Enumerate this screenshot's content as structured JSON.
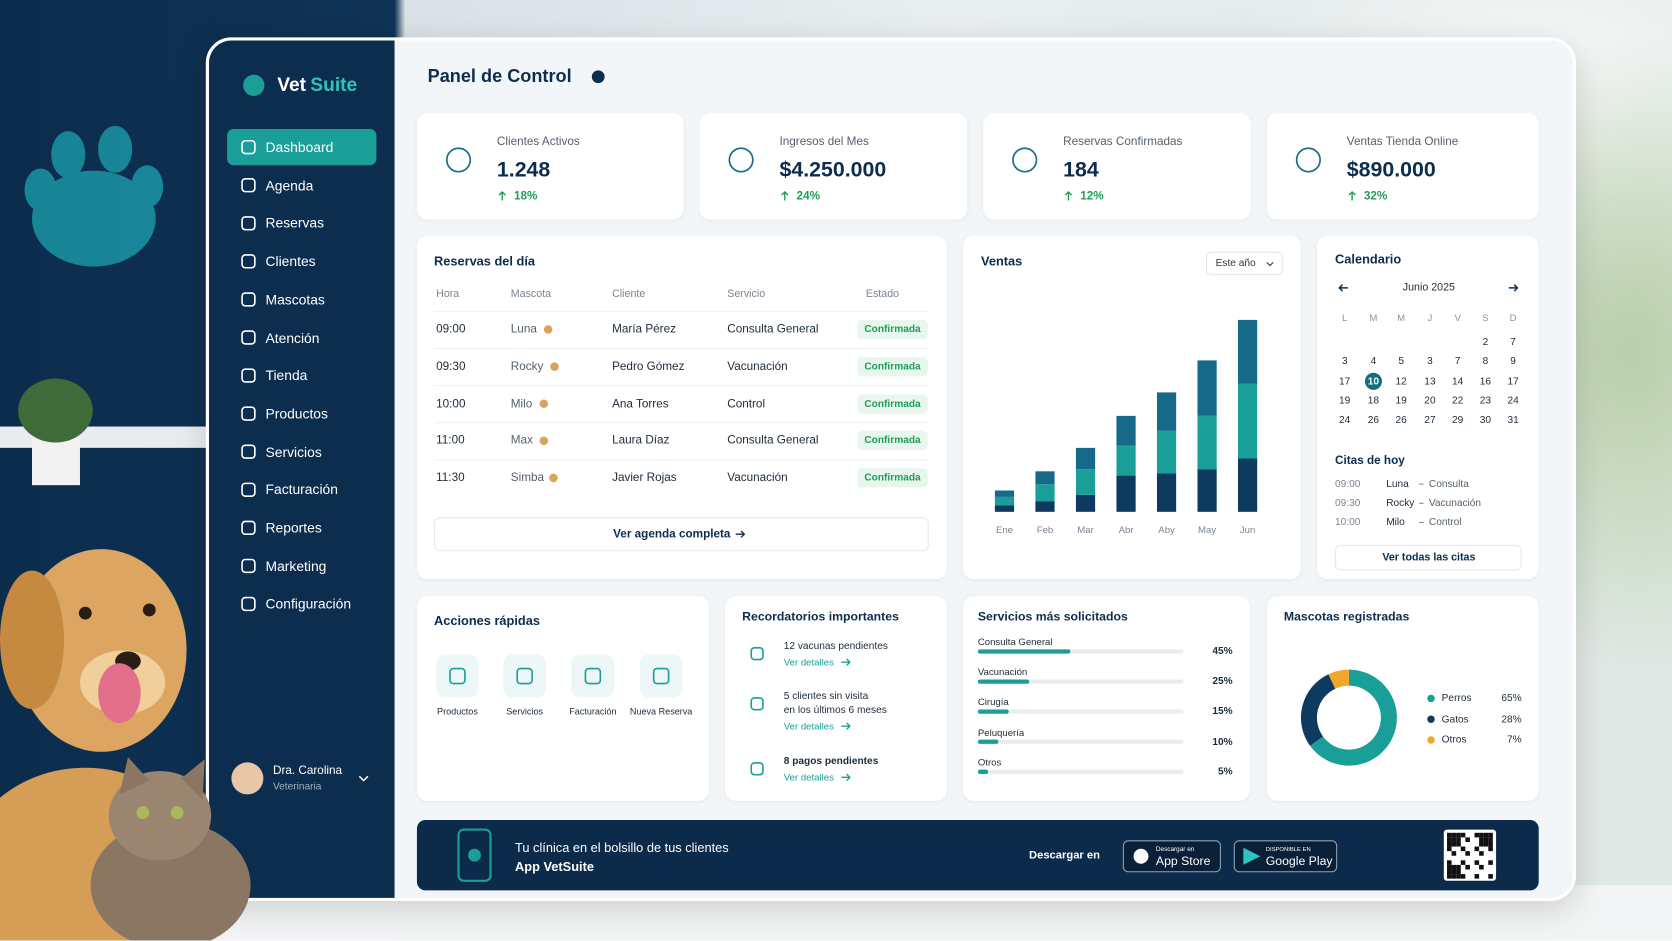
{
  "brand": {
    "part1": "Vet",
    "part2": "Suite"
  },
  "menu": {
    "items": [
      "Dashboard",
      "Agenda",
      "Reservas",
      "Clientes",
      "Mascotas",
      "Atención",
      "Tienda",
      "Productos",
      "Servicios",
      "Facturación",
      "Reportes",
      "Marketing",
      "Configuración"
    ],
    "active": 0
  },
  "user": {
    "name": "Dra. Carolina",
    "role": "Veterinaria"
  },
  "header": {
    "title": "Panel de Control"
  },
  "kpis": [
    {
      "label": "Clientes Activos",
      "value": "1.248",
      "change": "18%"
    },
    {
      "label": "Ingresos del Mes",
      "value": "$4.250.000",
      "change": "24%"
    },
    {
      "label": "Reservas Confirmadas",
      "value": "184",
      "change": "12%"
    },
    {
      "label": "Ventas Tienda Online",
      "value": "$890.000",
      "change": "32%"
    }
  ],
  "reservas": {
    "title": "Reservas del día",
    "columns": [
      "Hora",
      "Mascota",
      "Cliente",
      "Servicio",
      "Estado"
    ],
    "rows": [
      [
        "09:00",
        "Luna",
        "María Pérez",
        "Consulta General",
        "Confirmada"
      ],
      [
        "09:30",
        "Rocky",
        "Pedro Gómez",
        "Vacunación",
        "Confirmada"
      ],
      [
        "10:00",
        "Milo",
        "Ana Torres",
        "Control",
        "Confirmada"
      ],
      [
        "11:00",
        "Max",
        "Laura Díaz",
        "Consulta General",
        "Confirmada"
      ],
      [
        "11:30",
        "Simba",
        "Javier Rojas",
        "Vacunación",
        "Confirmada"
      ]
    ],
    "link": "Ver agenda completa"
  },
  "ventas": {
    "type": "bar",
    "stacked": true,
    "title": "Ventas",
    "filter": "Este año",
    "categories": [
      "Ene",
      "Feb",
      "Mar",
      "Abr",
      "Aby",
      "May",
      "Jun"
    ],
    "series": [
      {
        "color": "#0e3a5f",
        "values": [
          3,
          5,
          8,
          17,
          18,
          20,
          25
        ]
      },
      {
        "color": "#1a9e98",
        "values": [
          4,
          8,
          12,
          14,
          20,
          25,
          35
        ]
      },
      {
        "color": "#17698a",
        "values": [
          3,
          6,
          10,
          14,
          18,
          26,
          30
        ]
      }
    ],
    "ylim": [
      0,
      100
    ]
  },
  "calendario": {
    "title": "Calendario",
    "month": "Junio 2025",
    "weekdays": [
      "L",
      "M",
      "M",
      "J",
      "V",
      "S",
      "D"
    ],
    "weeks": [
      [
        null,
        null,
        null,
        null,
        null,
        "2",
        "7"
      ],
      [
        "3",
        "4",
        "5",
        "3",
        "7",
        "8",
        "9"
      ],
      [
        "17",
        "10",
        "12",
        "13",
        "14",
        "16",
        "17"
      ],
      [
        "19",
        "18",
        "19",
        "20",
        "22",
        "23",
        "24"
      ],
      [
        "24",
        "26",
        "26",
        "27",
        "29",
        "30",
        "31"
      ]
    ],
    "highlight": [
      2,
      1
    ],
    "today_title": "Citas de hoy",
    "citas": [
      [
        "09:00",
        "Luna",
        "Consulta"
      ],
      [
        "09:30",
        "Rocky",
        "Vacunación"
      ],
      [
        "10:00",
        "Milo",
        "Control"
      ]
    ],
    "link": "Ver todas las citas"
  },
  "acciones": {
    "title": "Acciones rápidas",
    "items": [
      "Productos",
      "Servicios",
      "Facturación",
      "Nueva Reserva"
    ]
  },
  "recordatorios": {
    "title": "Recordatorios importantes",
    "items": [
      {
        "lines": [
          "12 vacunas pendientes"
        ],
        "link": "Ver detalles"
      },
      {
        "lines": [
          "5 clientes sin visita",
          "en los últimos 6 meses"
        ],
        "link": "Ver detalles"
      },
      {
        "lines": [
          "8 pagos pendientes"
        ],
        "link": "Ver detalles"
      }
    ]
  },
  "servicios": {
    "title": "Servicios más solicitados",
    "categories": [
      "Consulta General",
      "Vacunación",
      "Cirugía",
      "Peluquería",
      "Otros"
    ],
    "values": [
      45,
      25,
      15,
      10,
      5
    ],
    "value_labels": [
      "45%",
      "25%",
      "15%",
      "10%",
      "5%"
    ],
    "color": "#1a9e98",
    "xlim": [
      0,
      100
    ]
  },
  "mascotas": {
    "type": "pie",
    "title": "Mascotas registradas",
    "categories": [
      "Perros",
      "Gatos",
      "Otros"
    ],
    "values": [
      65,
      28,
      7
    ],
    "value_labels": [
      "65%",
      "28%",
      "7%"
    ],
    "colors": [
      "#1a9e98",
      "#0e3a5f",
      "#f4a62a"
    ]
  },
  "banner": {
    "lines": [
      "Tu clínica en el bolsillo de tus clientes",
      "App VetSuite"
    ],
    "download": "Descargar en",
    "app_store": {
      "small": "Descargar en",
      "large": "App Store"
    },
    "google_play": {
      "small": "DISPONIBLE EN",
      "large": "Google Play"
    }
  }
}
